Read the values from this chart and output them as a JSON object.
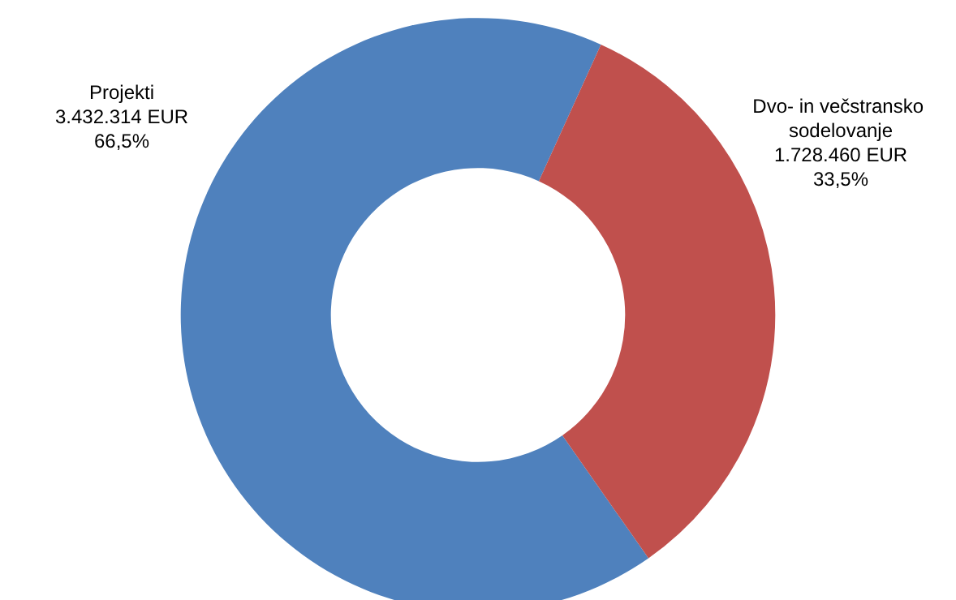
{
  "chart_data": {
    "type": "donut",
    "categories": [
      "Projekti",
      "Dvo- in večstransko sodelovanje"
    ],
    "values": [
      3432314,
      1728460
    ],
    "colors": [
      "#4f81bd",
      "#c0504d"
    ],
    "value_labels": [
      "3.432.314 EUR\n66,5%",
      "1.728.460 EUR\n33,5%"
    ],
    "legend": false
  }
}
